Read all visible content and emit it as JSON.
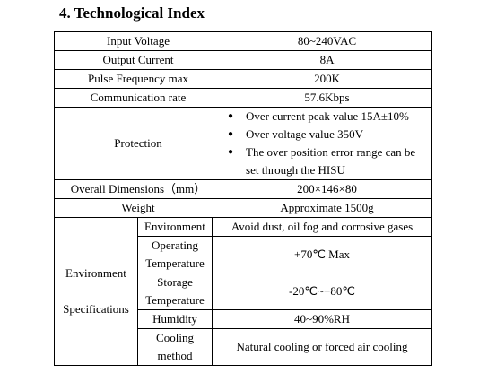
{
  "header": {
    "title": "4. Technological Index"
  },
  "table": {
    "rows": [
      {
        "label": "Input Voltage",
        "value": "80~240VAC"
      },
      {
        "label": "Output Current",
        "value": "8A"
      },
      {
        "label": "Pulse Frequency max",
        "value": "200K"
      },
      {
        "label": "Communication rate",
        "value": "57.6Kbps"
      }
    ],
    "protection": {
      "label": "Protection",
      "items": [
        "Over current peak value 15A±10%",
        "Over voltage value 350V",
        "The over position error range can be set through the HISU"
      ]
    },
    "rows2": [
      {
        "label": "Overall Dimensions（mm）",
        "value": "200×146×80"
      },
      {
        "label": "Weight",
        "value": "Approximate 1500g"
      }
    ],
    "environment": {
      "label": "Environment Specifications",
      "rows": [
        {
          "label": "Environment",
          "value": "Avoid dust, oil fog and corrosive gases"
        },
        {
          "label": "Operating Temperature",
          "value": "+70℃ Max"
        },
        {
          "label": "Storage Temperature",
          "value": "-20℃~+80℃"
        },
        {
          "label": "Humidity",
          "value": "40~90%RH"
        },
        {
          "label": "Cooling method",
          "value": "Natural cooling or forced air cooling"
        }
      ]
    }
  }
}
